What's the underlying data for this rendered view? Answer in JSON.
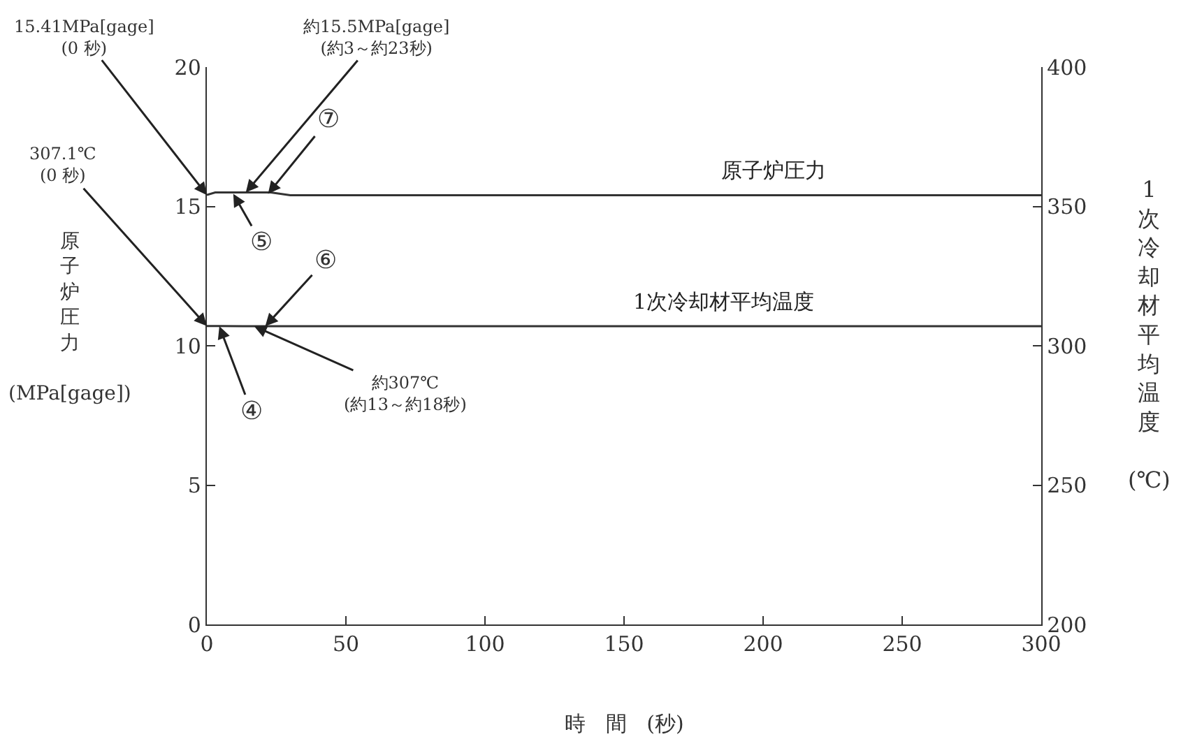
{
  "chart_data": {
    "type": "line",
    "xlabel": "時 間 (秒)",
    "ylabel": "原子炉圧力(MPa[gage])",
    "y2label": "1次冷却材平均温度(℃)",
    "xlim": [
      0,
      300
    ],
    "xticks": [
      0,
      50,
      100,
      150,
      200,
      250,
      300
    ],
    "ylim": [
      0,
      20
    ],
    "yticks": [
      0,
      5,
      10,
      15,
      20
    ],
    "y2lim": [
      200,
      400
    ],
    "y2ticks": [
      200,
      250,
      300,
      350,
      400
    ],
    "legend": false,
    "marker": "none",
    "line_style": "solid",
    "series": [
      {
        "name": "原子炉圧力",
        "color": "#333333",
        "x": [
          0,
          3,
          13,
          23,
          30,
          300
        ],
        "values": [
          15.41,
          15.5,
          15.5,
          15.5,
          15.4,
          15.4
        ]
      },
      {
        "name": "1次冷却材平均温度",
        "color": "#333333",
        "axis": "y2",
        "x": [
          0,
          4,
          13,
          18,
          21,
          300
        ],
        "values": [
          307.1,
          307.1,
          307,
          307,
          307,
          307
        ]
      }
    ],
    "annotations": [
      {
        "text": "15.41MPa[gage]\n(0 秒)",
        "x": 0,
        "y": 15.41
      },
      {
        "text": "約15.5MPa[gage]\n(約3～約23秒)",
        "x": 14,
        "y": 15.5
      },
      {
        "text": "⑦",
        "x": 22,
        "y": 15.45
      },
      {
        "text": "⑤",
        "x": 9.5,
        "y": 15.45
      },
      {
        "text": "307.1℃\n(0 秒)",
        "x": 0,
        "y": 10.71
      },
      {
        "text": "⑥",
        "x": 21,
        "y": 10.7
      },
      {
        "text": "④",
        "x": 4.5,
        "y": 10.7
      },
      {
        "text": "約307℃\n(約13～約18秒)",
        "x": 17,
        "y": 10.7
      }
    ]
  }
}
